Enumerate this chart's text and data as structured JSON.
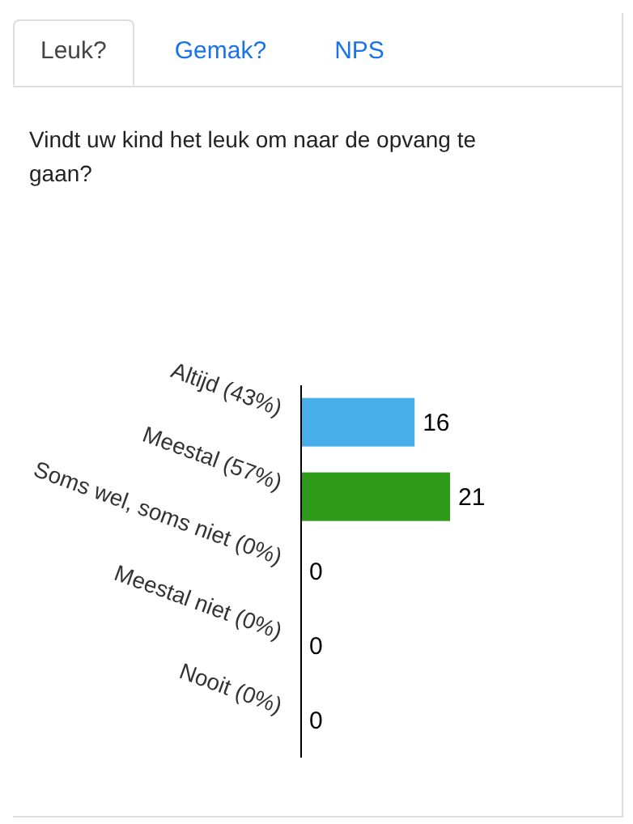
{
  "chart_data": {
    "type": "bar",
    "orientation": "horizontal",
    "title": "Vindt uw kind het leuk om naar de opvang te gaan?",
    "annotations": [
      "Leuk?",
      "Gemak?",
      "NPS"
    ],
    "categories": [
      "Altijd (43%)",
      "Meestal (57%)",
      "Soms wel, soms niet (0%)",
      "Meestal niet (0%)",
      "Nooit (0%)"
    ],
    "values": [
      16,
      21,
      0,
      0,
      0
    ],
    "colors": [
      "#47aee9",
      "#2d9a1a",
      "#2d9a1a",
      "#2d9a1a",
      "#2d9a1a"
    ],
    "data_labels": true
  }
}
